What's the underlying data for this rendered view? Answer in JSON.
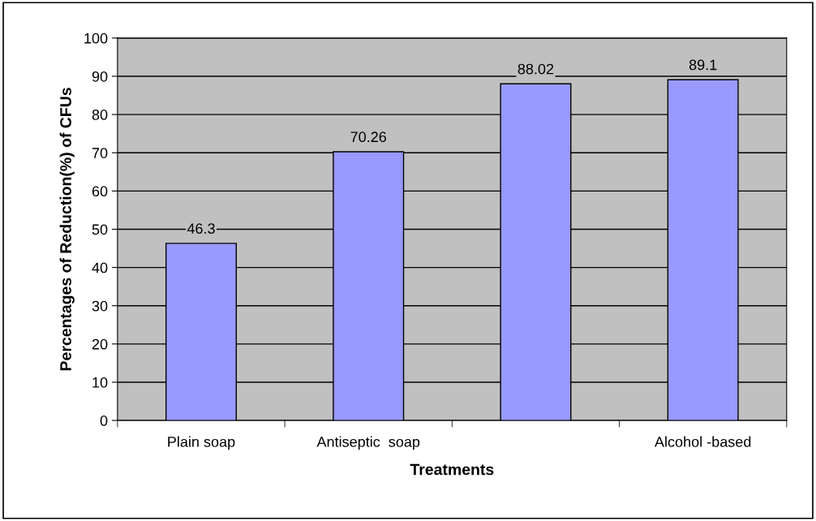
{
  "chart_data": {
    "type": "bar",
    "xlabel": "Treatments",
    "ylabel": "Percentages of Reduction(%) of CFUs",
    "categories": [
      "Plain soap",
      "Antiseptic  soap",
      null,
      "Alcohol -based"
    ],
    "values": [
      46.3,
      70.26,
      88.02,
      89.1
    ],
    "color": "#9999ff",
    "ylim": [
      0,
      100
    ],
    "yticks": [
      0,
      10,
      20,
      30,
      40,
      50,
      60,
      70,
      80,
      90,
      100
    ],
    "grid": "y",
    "data_labels": true
  }
}
